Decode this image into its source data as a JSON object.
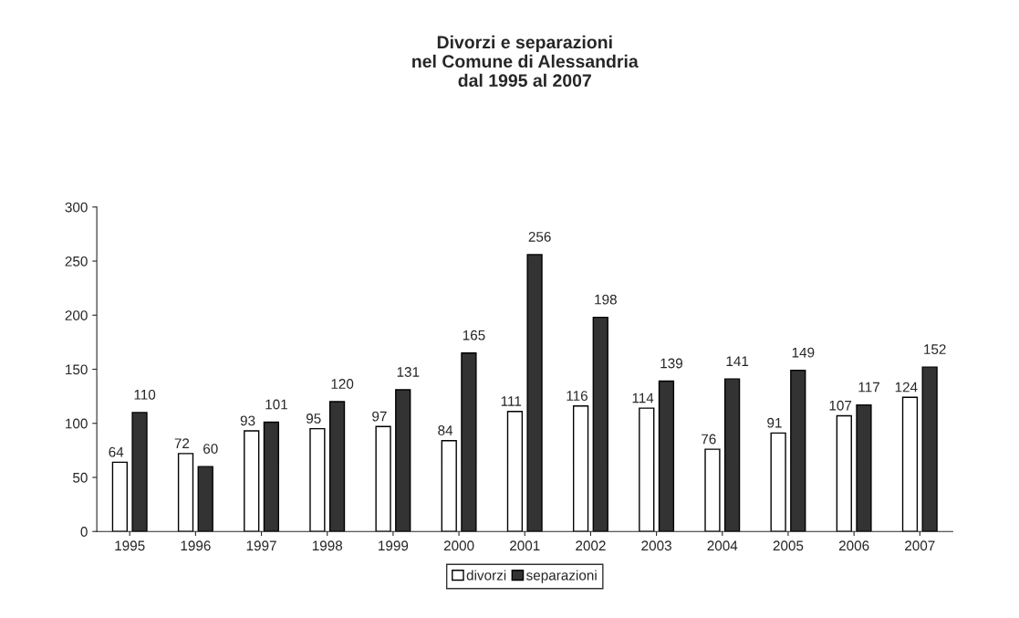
{
  "chart_data": {
    "type": "bar",
    "title": "Divorzi e separazioni\nnel Comune di Alessandria\ndal 1995 al 2007",
    "categories": [
      "1995",
      "1996",
      "1997",
      "1998",
      "1999",
      "2000",
      "2001",
      "2002",
      "2003",
      "2004",
      "2005",
      "2006",
      "2007"
    ],
    "series": [
      {
        "name": "divorzi",
        "color": "#ffffff",
        "values": [
          64,
          72,
          93,
          95,
          97,
          84,
          111,
          116,
          114,
          76,
          91,
          107,
          124
        ]
      },
      {
        "name": "separazioni",
        "color": "#333333",
        "values": [
          110,
          60,
          101,
          120,
          131,
          165,
          256,
          198,
          139,
          141,
          149,
          117,
          152
        ]
      }
    ],
    "ylim": [
      0,
      300
    ],
    "yticks": [
      0,
      50,
      100,
      150,
      200,
      250,
      300
    ],
    "grid": false,
    "legend": "bottom",
    "data_labels": true
  }
}
